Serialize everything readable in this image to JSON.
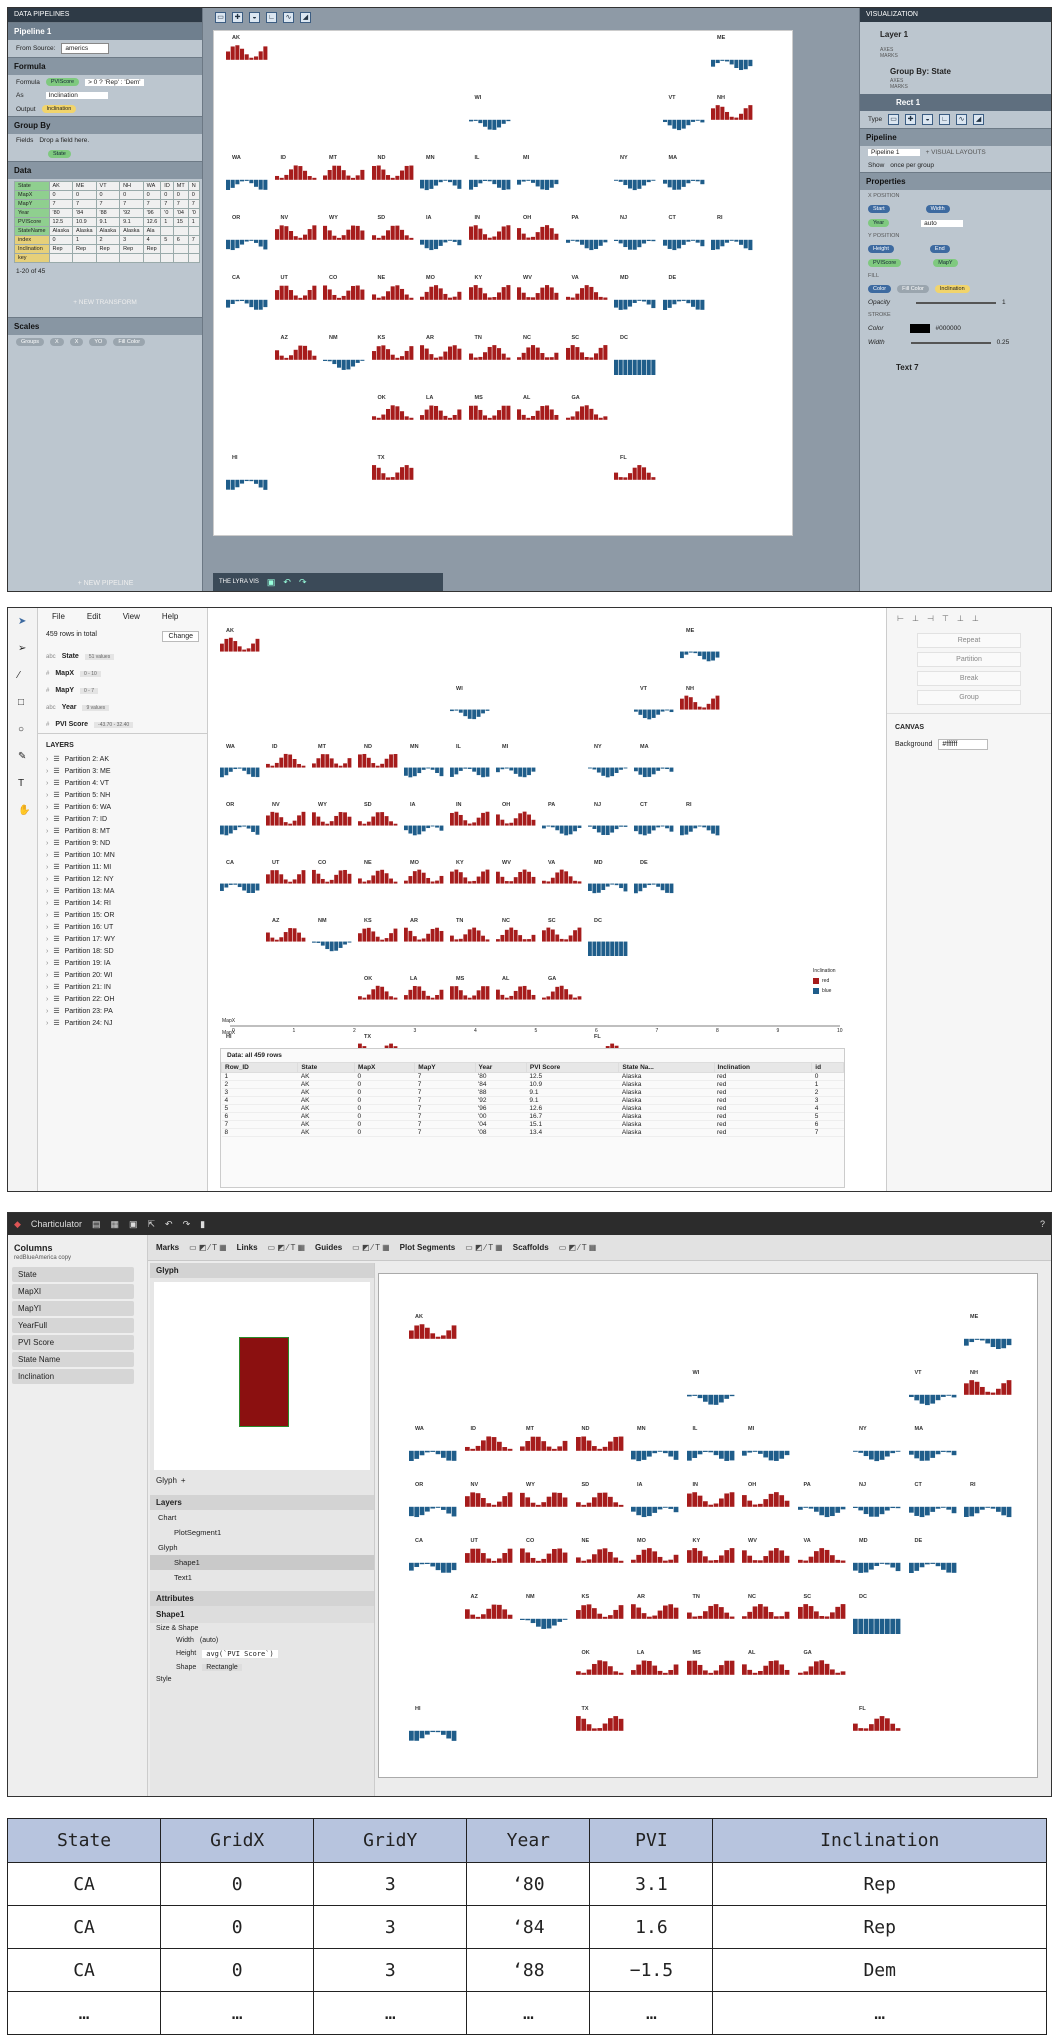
{
  "states": [
    {
      "s": "AK",
      "x": 0,
      "y": 0,
      "c": "r"
    },
    {
      "s": "ME",
      "x": 10,
      "y": 0,
      "c": "b"
    },
    {
      "s": "WI",
      "x": 5,
      "y": 1,
      "c": "b"
    },
    {
      "s": "VT",
      "x": 9,
      "y": 1,
      "c": "b"
    },
    {
      "s": "NH",
      "x": 10,
      "y": 1,
      "c": "r"
    },
    {
      "s": "WA",
      "x": 0,
      "y": 2,
      "c": "b"
    },
    {
      "s": "ID",
      "x": 1,
      "y": 2,
      "c": "r"
    },
    {
      "s": "MT",
      "x": 2,
      "y": 2,
      "c": "r"
    },
    {
      "s": "ND",
      "x": 3,
      "y": 2,
      "c": "r"
    },
    {
      "s": "MN",
      "x": 4,
      "y": 2,
      "c": "b"
    },
    {
      "s": "IL",
      "x": 5,
      "y": 2,
      "c": "b"
    },
    {
      "s": "MI",
      "x": 6,
      "y": 2,
      "c": "b"
    },
    {
      "s": "NY",
      "x": 8,
      "y": 2,
      "c": "b"
    },
    {
      "s": "MA",
      "x": 9,
      "y": 2,
      "c": "b"
    },
    {
      "s": "OR",
      "x": 0,
      "y": 3,
      "c": "b"
    },
    {
      "s": "NV",
      "x": 1,
      "y": 3,
      "c": "r"
    },
    {
      "s": "WY",
      "x": 2,
      "y": 3,
      "c": "r"
    },
    {
      "s": "SD",
      "x": 3,
      "y": 3,
      "c": "r"
    },
    {
      "s": "IA",
      "x": 4,
      "y": 3,
      "c": "b"
    },
    {
      "s": "IN",
      "x": 5,
      "y": 3,
      "c": "r"
    },
    {
      "s": "OH",
      "x": 6,
      "y": 3,
      "c": "r"
    },
    {
      "s": "PA",
      "x": 7,
      "y": 3,
      "c": "b"
    },
    {
      "s": "NJ",
      "x": 8,
      "y": 3,
      "c": "b"
    },
    {
      "s": "CT",
      "x": 9,
      "y": 3,
      "c": "b"
    },
    {
      "s": "RI",
      "x": 10,
      "y": 3,
      "c": "b"
    },
    {
      "s": "CA",
      "x": 0,
      "y": 4,
      "c": "b"
    },
    {
      "s": "UT",
      "x": 1,
      "y": 4,
      "c": "r"
    },
    {
      "s": "CO",
      "x": 2,
      "y": 4,
      "c": "r"
    },
    {
      "s": "NE",
      "x": 3,
      "y": 4,
      "c": "r"
    },
    {
      "s": "MO",
      "x": 4,
      "y": 4,
      "c": "r"
    },
    {
      "s": "KY",
      "x": 5,
      "y": 4,
      "c": "r"
    },
    {
      "s": "WV",
      "x": 6,
      "y": 4,
      "c": "r"
    },
    {
      "s": "VA",
      "x": 7,
      "y": 4,
      "c": "r"
    },
    {
      "s": "MD",
      "x": 8,
      "y": 4,
      "c": "b"
    },
    {
      "s": "DE",
      "x": 9,
      "y": 4,
      "c": "b"
    },
    {
      "s": "AZ",
      "x": 1,
      "y": 5,
      "c": "r"
    },
    {
      "s": "NM",
      "x": 2,
      "y": 5,
      "c": "b"
    },
    {
      "s": "KS",
      "x": 3,
      "y": 5,
      "c": "r"
    },
    {
      "s": "AR",
      "x": 4,
      "y": 5,
      "c": "r"
    },
    {
      "s": "TN",
      "x": 5,
      "y": 5,
      "c": "r"
    },
    {
      "s": "NC",
      "x": 6,
      "y": 5,
      "c": "r"
    },
    {
      "s": "SC",
      "x": 7,
      "y": 5,
      "c": "r"
    },
    {
      "s": "DC",
      "x": 8,
      "y": 5,
      "c": "B"
    },
    {
      "s": "OK",
      "x": 3,
      "y": 6,
      "c": "r"
    },
    {
      "s": "LA",
      "x": 4,
      "y": 6,
      "c": "r"
    },
    {
      "s": "MS",
      "x": 5,
      "y": 6,
      "c": "r"
    },
    {
      "s": "AL",
      "x": 6,
      "y": 6,
      "c": "r"
    },
    {
      "s": "GA",
      "x": 7,
      "y": 6,
      "c": "r"
    },
    {
      "s": "HI",
      "x": 0,
      "y": 7,
      "c": "b"
    },
    {
      "s": "TX",
      "x": 3,
      "y": 7,
      "c": "r"
    },
    {
      "s": "FL",
      "x": 8,
      "y": 7,
      "c": "r"
    }
  ],
  "lyra": {
    "header": "DATA PIPELINES",
    "pipeline": "Pipeline 1",
    "from_source_label": "From Source:",
    "from_source": "americs",
    "formula_sec": "Formula",
    "formula_label": "Formula",
    "formula_pill": "PVIScore",
    "formula_expr": "> 0 ? 'Rep' : 'Dem'",
    "as_label": "As",
    "as_value": "Inclination",
    "output_label": "Output",
    "output_pill": "Inclination",
    "groupby_sec": "Group By",
    "fields_label": "Fields",
    "drop_text": "Drop a field here.",
    "group_pill": "State",
    "data_sec": "Data",
    "data_rows": [
      [
        "State",
        "AK",
        "ME",
        "VT",
        "NH",
        "WA",
        "ID",
        "MT",
        "N"
      ],
      [
        "MapX",
        "0",
        "0",
        "0",
        "0",
        "0",
        "0",
        "0",
        "0"
      ],
      [
        "MapY",
        "7",
        "7",
        "7",
        "7",
        "7",
        "7",
        "7",
        "7"
      ],
      [
        "Year",
        "'80",
        "'84",
        "'88",
        "'92",
        "'96",
        "'0",
        "'04",
        "'0"
      ],
      [
        "PVIScore",
        "12.5",
        "10.9",
        "9.1",
        "9.1",
        "12.6",
        "1",
        "15",
        "1"
      ],
      [
        "StateName",
        "Alaska",
        "Alaska",
        "Alaska",
        "Alaska",
        "Ala",
        "",
        "",
        ""
      ],
      [
        "index",
        "0",
        "1",
        "2",
        "3",
        "4",
        "5",
        "6",
        "7"
      ],
      [
        "Inclination",
        "Rep",
        "Rep",
        "Rep",
        "Rep",
        "Rep",
        "",
        "",
        ""
      ],
      [
        "key",
        "",
        "",
        "",
        "",
        "",
        "",
        "",
        ""
      ]
    ],
    "pager": "1-20 of 45",
    "new_transform": "+ NEW TRANSFORM",
    "scales_sec": "Scales",
    "scales": [
      "Groups",
      "X",
      "X",
      "YO",
      "Fill Color"
    ],
    "new_pipeline": "+ NEW PIPELINE",
    "bottom_tab": "THE LYRA VIS",
    "viz_header": "VISUALIZATION",
    "layer1": "Layer 1",
    "axes": "AXES",
    "marks": "MARKS",
    "group_by_state": "Group By: State",
    "axes2": "AXES",
    "marks2": "MARKS",
    "rect1": "Rect 1",
    "type_label": "Type",
    "pipeline_sec": "Pipeline",
    "pipeline_sel": "Pipeline 1",
    "visual_layouts": "+ VISUAL LAYOUTS",
    "show_label": "Show",
    "once_per_group": "once per group",
    "properties_sec": "Properties",
    "xpos": "X POSITION",
    "start": "Start",
    "width": "Width",
    "year_pill": "Year",
    "auto": "auto",
    "ypos": "Y POSITION",
    "height": "Height",
    "end": "End",
    "pvi_pill": "PVIScore",
    "mapy_pill": "MapY",
    "fill": "FILL",
    "color": "Color",
    "fill_color_pill": "Fill Color",
    "incl_pill": "Inclination",
    "opacity": "Opacity",
    "opacity_val": "1",
    "stroke": "STROKE",
    "stroke_color": "Color",
    "stroke_hex": "#000000",
    "stroke_width": "Width",
    "stroke_w_val": "0.25",
    "text7": "Text 7"
  },
  "dv": {
    "menu": [
      "File",
      "Edit",
      "View",
      "Help"
    ],
    "rows_total": "459 rows in total",
    "change": "Change",
    "fields": [
      {
        "t": "abc",
        "n": "State",
        "r": "51 values"
      },
      {
        "t": "#",
        "n": "MapX",
        "r": "0 - 10"
      },
      {
        "t": "#",
        "n": "MapY",
        "r": "0 - 7"
      },
      {
        "t": "abc",
        "n": "Year",
        "r": "9 values"
      },
      {
        "t": "#",
        "n": "PVI Score",
        "r": "-43.70 - 32.40"
      }
    ],
    "layers_title": "LAYERS",
    "layers": [
      "Partition 2: AK",
      "Partition 3: ME",
      "Partition 4: VT",
      "Partition 5: NH",
      "Partition 6: WA",
      "Partition 7: ID",
      "Partition 8: MT",
      "Partition 9: ND",
      "Partition 10: MN",
      "Partition 11: MI",
      "Partition 12: NY",
      "Partition 13: MA",
      "Partition 14: RI",
      "Partition 15: OR",
      "Partition 16: UT",
      "Partition 17: WY",
      "Partition 18: SD",
      "Partition 19: IA",
      "Partition 20: WI",
      "Partition 21: IN",
      "Partition 22: OH",
      "Partition 23: PA",
      "Partition 24: NJ"
    ],
    "right_buttons": [
      "Repeat",
      "Partition",
      "Break",
      "Group"
    ],
    "canvas_label": "CANVAS",
    "background_label": "Background",
    "background_val": "#ffffff",
    "legend_title": "Inclination",
    "legend": [
      "red",
      "blue"
    ],
    "axis_labels": [
      "MapX",
      "MapX"
    ],
    "axis_ticks": [
      "0",
      "1",
      "2",
      "3",
      "4",
      "5",
      "6",
      "7",
      "8",
      "9",
      "10"
    ],
    "table_title": "Data: all 459 rows",
    "table_headers": [
      "Row_ID",
      "State",
      "MapX",
      "MapY",
      "Year",
      "PVI Score",
      "State Na...",
      "Inclination",
      "id"
    ],
    "table_rows": [
      [
        "1",
        "AK",
        "0",
        "7",
        "'80",
        "12.5",
        "Alaska",
        "red",
        "0"
      ],
      [
        "2",
        "AK",
        "0",
        "7",
        "'84",
        "10.9",
        "Alaska",
        "red",
        "1"
      ],
      [
        "3",
        "AK",
        "0",
        "7",
        "'88",
        "9.1",
        "Alaska",
        "red",
        "2"
      ],
      [
        "4",
        "AK",
        "0",
        "7",
        "'92",
        "9.1",
        "Alaska",
        "red",
        "3"
      ],
      [
        "5",
        "AK",
        "0",
        "7",
        "'96",
        "12.6",
        "Alaska",
        "red",
        "4"
      ],
      [
        "6",
        "AK",
        "0",
        "7",
        "'00",
        "16.7",
        "Alaska",
        "red",
        "5"
      ],
      [
        "7",
        "AK",
        "0",
        "7",
        "'04",
        "15.1",
        "Alaska",
        "red",
        "6"
      ],
      [
        "8",
        "AK",
        "0",
        "7",
        "'08",
        "13.4",
        "Alaska",
        "red",
        "7"
      ]
    ]
  },
  "ch": {
    "app": "Charticulator",
    "columns_title": "Columns",
    "dataset": "redBlueAmerica copy",
    "columns": [
      "State",
      "MapXI",
      "MapYI",
      "YearFull",
      "PVI Score",
      "State Name",
      "Inclination"
    ],
    "tools": [
      "Marks",
      "Links",
      "Guides",
      "Plot Segments",
      "Scaffolds"
    ],
    "glyph_sec": "Glyph",
    "glyph_label": "Glyph",
    "layers_sec": "Layers",
    "layer_items": [
      "Chart",
      "PlotSegment1",
      "Glyph",
      "Shape1",
      "Text1"
    ],
    "attributes_sec": "Attributes",
    "shape_name": "Shape1",
    "size_shape": "Size & Shape",
    "width_label": "Width",
    "width_val": "(auto)",
    "height_label": "Height",
    "height_val": "avg(`PVI Score`)",
    "shape_label": "Shape",
    "shape_val": "Rectangle",
    "style_label": "Style"
  },
  "table": {
    "headers": [
      "State",
      "GridX",
      "GridY",
      "Year",
      "PVI",
      "Inclination"
    ],
    "rows": [
      [
        "CA",
        "0",
        "3",
        "‘80",
        "3.1",
        "Rep"
      ],
      [
        "CA",
        "0",
        "3",
        "‘84",
        "1.6",
        "Rep"
      ],
      [
        "CA",
        "0",
        "3",
        "‘88",
        "−1.5",
        "Dem"
      ],
      [
        "…",
        "…",
        "…",
        "…",
        "…",
        "…"
      ]
    ]
  }
}
